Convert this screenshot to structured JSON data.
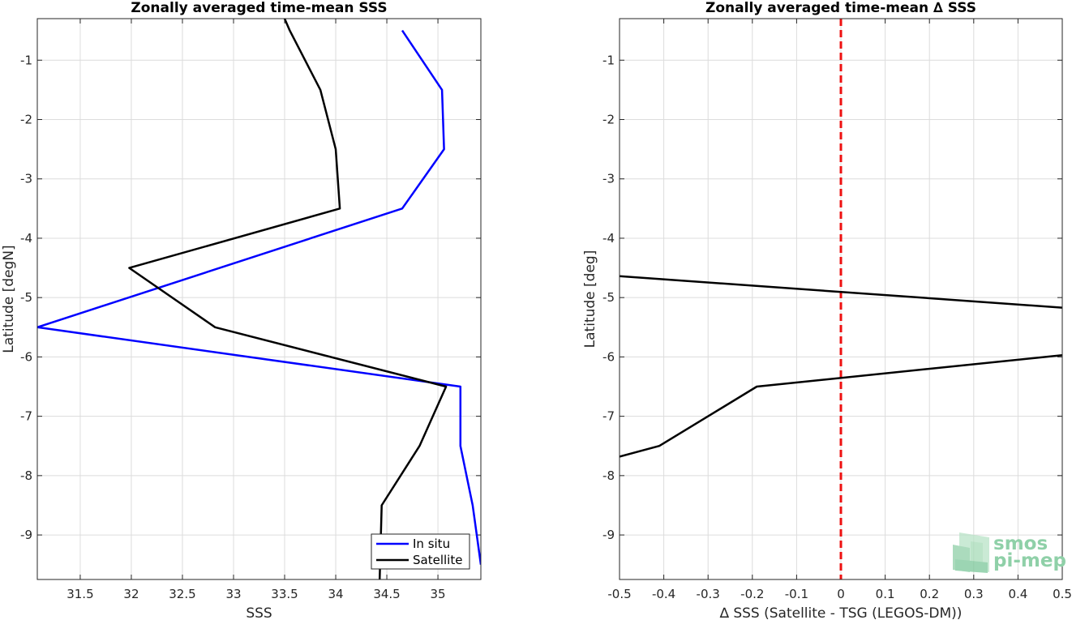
{
  "chart_data": [
    {
      "type": "line",
      "title": "Zonally averaged time-mean SSS",
      "xlabel": "SSS",
      "ylabel": "Latitude [degN]",
      "xlim": [
        31.08,
        35.42
      ],
      "ylim": [
        -9.75,
        -0.3
      ],
      "xticks": [
        31.5,
        32,
        32.5,
        33,
        33.5,
        34,
        34.5,
        35
      ],
      "xtick_labels": [
        "31.5",
        "32",
        "32.5",
        "33",
        "33.5",
        "34",
        "34.5",
        "35"
      ],
      "yticks": [
        -1,
        -2,
        -3,
        -4,
        -5,
        -6,
        -7,
        -8,
        -9
      ],
      "ytick_labels": [
        "-1",
        "-2",
        "-3",
        "-4",
        "-5",
        "-6",
        "-7",
        "-8",
        "-9"
      ],
      "grid": true,
      "legend": "bottom-right",
      "series": [
        {
          "name": "In situ",
          "color": "#0000ff",
          "x": [
            34.65,
            35.04,
            35.06,
            34.65,
            31.08,
            35.22,
            35.22,
            35.34,
            35.42
          ],
          "y": [
            -0.5,
            -1.5,
            -2.5,
            -3.5,
            -5.5,
            -6.5,
            -7.5,
            -8.5,
            -9.5
          ]
        },
        {
          "name": "Satellite",
          "color": "#000000",
          "x": [
            33.5,
            33.55,
            33.85,
            34.0,
            34.04,
            31.98,
            32.82,
            35.08,
            34.82,
            34.45,
            34.43
          ],
          "y": [
            -0.3,
            -0.5,
            -1.5,
            -2.5,
            -3.5,
            -4.5,
            -5.5,
            -6.5,
            -7.5,
            -8.5,
            -9.75
          ]
        }
      ]
    },
    {
      "type": "line",
      "title": "Zonally averaged time-mean ∆ SSS",
      "xlabel": "∆ SSS (Satellite - TSG (LEGOS-DM))",
      "ylabel": "Latitude [deg]",
      "xlim": [
        -0.5,
        0.5
      ],
      "ylim": [
        -9.75,
        -0.3
      ],
      "xticks": [
        -0.5,
        -0.4,
        -0.3,
        -0.2,
        -0.1,
        0,
        0.1,
        0.2,
        0.3,
        0.4,
        0.5
      ],
      "xtick_labels": [
        "-0.5",
        "-0.4",
        "-0.3",
        "-0.2",
        "-0.1",
        "0",
        "0.1",
        "0.2",
        "0.3",
        "0.4",
        "0.5"
      ],
      "yticks": [
        -1,
        -2,
        -3,
        -4,
        -5,
        -6,
        -7,
        -8,
        -9
      ],
      "ytick_labels": [
        "-1",
        "-2",
        "-3",
        "-4",
        "-5",
        "-6",
        "-7",
        "-8",
        "-9"
      ],
      "grid": true,
      "series": [
        {
          "color": "#000000",
          "segments": [
            {
              "x": [
                -0.5,
                0.5
              ],
              "y": [
                -4.64,
                -5.17
              ]
            },
            {
              "x": [
                0.5,
                -0.19,
                -0.41,
                -0.5
              ],
              "y": [
                -5.97,
                -6.5,
                -7.5,
                -7.68
              ]
            }
          ]
        }
      ],
      "reference_line": {
        "x": 0,
        "color": "#ee1111",
        "style": "dashed"
      }
    }
  ],
  "logo": {
    "line1": "smos",
    "line2": "pi-mep",
    "color": "#8fd0a8"
  }
}
